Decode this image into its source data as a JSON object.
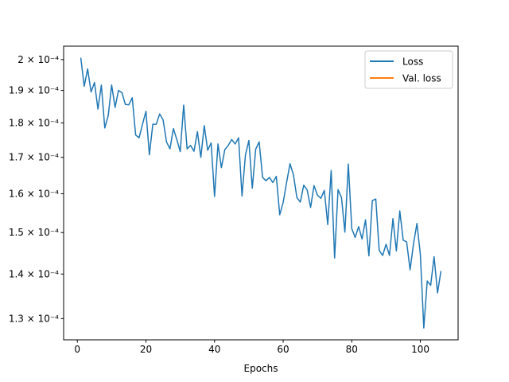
{
  "chart_data": {
    "type": "line",
    "title": "",
    "xlabel": "Epochs",
    "ylabel": "",
    "xlim": [
      -4,
      111
    ],
    "ylim": [
      0.0001255,
      0.0002045
    ],
    "yscale": "log",
    "grid": false,
    "legend_position": "top-right",
    "x_ticks": [
      0,
      20,
      40,
      60,
      80,
      100
    ],
    "x_tick_labels": [
      "0",
      "20",
      "40",
      "60",
      "80",
      "100"
    ],
    "y_ticks": [
      0.00013,
      0.00014,
      0.00015,
      0.00016,
      0.00017,
      0.00018,
      0.00019,
      0.0002
    ],
    "y_tick_labels": [
      "1.3 × 10⁻⁴",
      "1.4 × 10⁻⁴",
      "1.5 × 10⁻⁴",
      "1.6 × 10⁻⁴",
      "1.7 × 10⁻⁴",
      "1.8 × 10⁻⁴",
      "1.9 × 10⁻⁴",
      "2 × 10⁻⁴"
    ],
    "series": [
      {
        "name": "Loss",
        "color": "#1f77b4",
        "x": [
          1,
          2,
          3,
          4,
          5,
          6,
          7,
          8,
          9,
          10,
          11,
          12,
          13,
          14,
          15,
          16,
          17,
          18,
          19,
          20,
          21,
          22,
          23,
          24,
          25,
          26,
          27,
          28,
          29,
          30,
          31,
          32,
          33,
          34,
          35,
          36,
          37,
          38,
          39,
          40,
          41,
          42,
          43,
          44,
          45,
          46,
          47,
          48,
          49,
          50,
          51,
          52,
          53,
          54,
          55,
          56,
          57,
          58,
          59,
          60,
          61,
          62,
          63,
          64,
          65,
          66,
          67,
          68,
          69,
          70,
          71,
          72,
          73,
          74,
          75,
          76,
          77,
          78,
          79,
          80,
          81,
          82,
          83,
          84,
          85,
          86,
          87,
          88,
          89,
          90,
          91,
          92,
          93,
          94,
          95,
          96,
          97,
          98,
          99,
          100,
          101,
          102,
          103,
          104,
          105,
          106
        ],
        "y": [
          0.0002006,
          0.0001913,
          0.0001969,
          0.0001895,
          0.0001925,
          0.0001842,
          0.0001917,
          0.0001785,
          0.0001822,
          0.0001917,
          0.0001847,
          0.00019,
          0.0001893,
          0.0001856,
          0.0001855,
          0.0001877,
          0.0001764,
          0.0001756,
          0.0001796,
          0.0001835,
          0.0001707,
          0.0001796,
          0.0001796,
          0.0001827,
          0.0001809,
          0.0001744,
          0.0001724,
          0.0001783,
          0.0001751,
          0.0001716,
          0.0001854,
          0.0001724,
          0.0001734,
          0.0001717,
          0.0001774,
          0.00017,
          0.0001792,
          0.000172,
          0.0001741,
          0.0001593,
          0.0001738,
          0.0001671,
          0.0001722,
          0.0001734,
          0.0001751,
          0.0001738,
          0.0001756,
          0.0001594,
          0.0001706,
          0.0001748,
          0.0001615,
          0.0001723,
          0.0001744,
          0.0001644,
          0.0001635,
          0.0001644,
          0.000163,
          0.0001647,
          0.0001545,
          0.0001577,
          0.000163,
          0.0001682,
          0.0001651,
          0.000159,
          0.0001578,
          0.0001623,
          0.000161,
          0.0001564,
          0.0001622,
          0.0001596,
          0.0001588,
          0.0001609,
          0.000152,
          0.0001663,
          0.0001438,
          0.0001611,
          0.000159,
          0.0001501,
          0.0001681,
          0.000151,
          0.0001488,
          0.0001515,
          0.0001484,
          0.0001532,
          0.0001443,
          0.0001582,
          0.0001586,
          0.0001456,
          0.0001444,
          0.0001471,
          0.0001444,
          0.0001535,
          0.0001455,
          0.0001555,
          0.0001481,
          0.0001477,
          0.000141,
          0.0001472,
          0.0001523,
          0.0001446,
          0.000128,
          0.0001384,
          0.0001374,
          0.0001441,
          0.0001357,
          0.0001407
        ]
      },
      {
        "name": "Val. loss",
        "color": "#ff7f0e",
        "x": [],
        "y": []
      }
    ]
  }
}
